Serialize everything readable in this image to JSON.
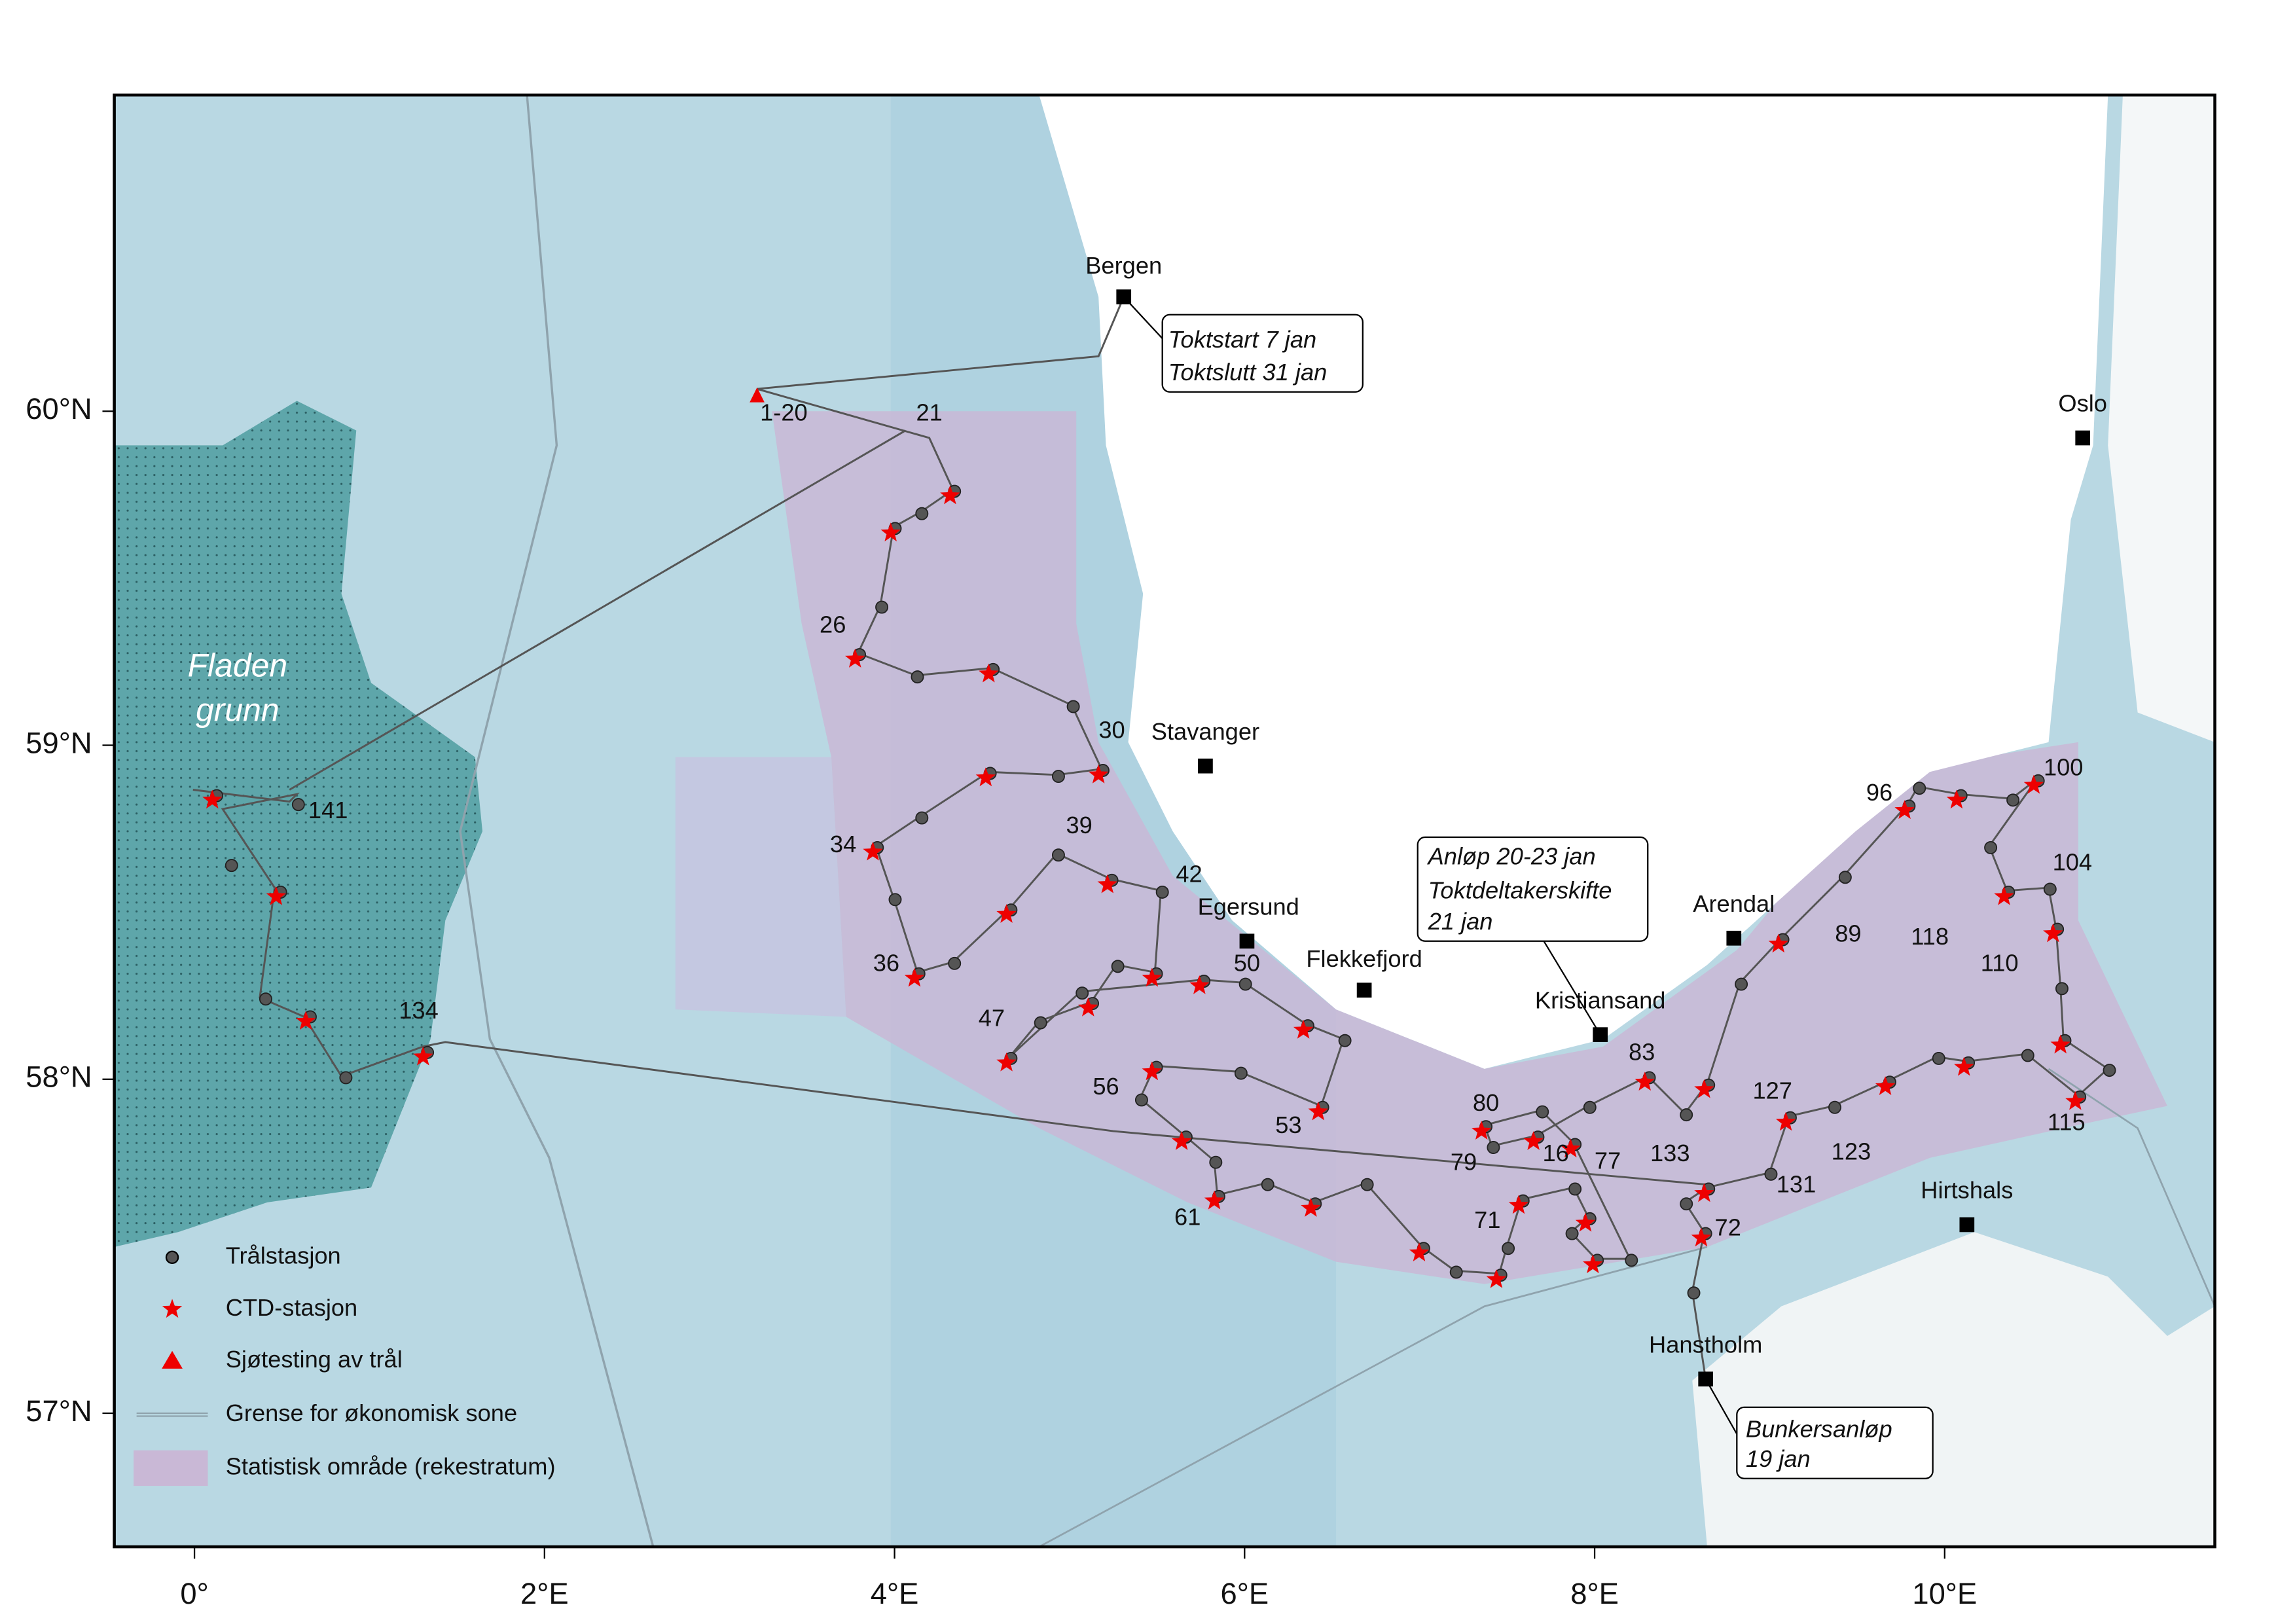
{
  "map": {
    "xticks": [
      {
        "value": 0,
        "label": "0°"
      },
      {
        "value": 2,
        "label": "2°E"
      },
      {
        "value": 4,
        "label": "4°E"
      },
      {
        "value": 6,
        "label": "6°E"
      },
      {
        "value": 8,
        "label": "8°E"
      },
      {
        "value": 10,
        "label": "10°E"
      }
    ],
    "yticks": [
      {
        "value": 60,
        "label": "60°N"
      },
      {
        "value": 59,
        "label": "59°N"
      },
      {
        "value": 58,
        "label": "58°N"
      },
      {
        "value": 57,
        "label": "57°N"
      }
    ],
    "region": [
      "Fladen",
      "grunn"
    ],
    "places": [
      "Bergen",
      "Stavanger",
      "Egersund",
      "Flekkefjord",
      "Kristiansand",
      "Arendal",
      "Oslo",
      "Hirtshals",
      "Hanstholm"
    ],
    "stations": [
      "1-20",
      "21",
      "26",
      "30",
      "34",
      "36",
      "39",
      "42",
      "47",
      "50",
      "53",
      "56",
      "61",
      "16",
      "71",
      "72",
      "77",
      "79",
      "80",
      "83",
      "89",
      "96",
      "100",
      "104",
      "110",
      "115",
      "118",
      "123",
      "127",
      "131",
      "133",
      "134",
      "141"
    ],
    "annotations": [
      [
        "Toktstart 7 jan",
        "Toktslutt 31 jan"
      ],
      [
        "Anløp 20-23 jan",
        "Toktdeltakerskifte",
        "21 jan"
      ],
      [
        "Bunkersanløp",
        "19  jan"
      ]
    ],
    "legend": [
      "Trålstasjon",
      "CTD-stasjon",
      "Sjøtesting av trål",
      "Grense for økonomisk sone",
      "Statistisk område (rekestratum)"
    ]
  }
}
